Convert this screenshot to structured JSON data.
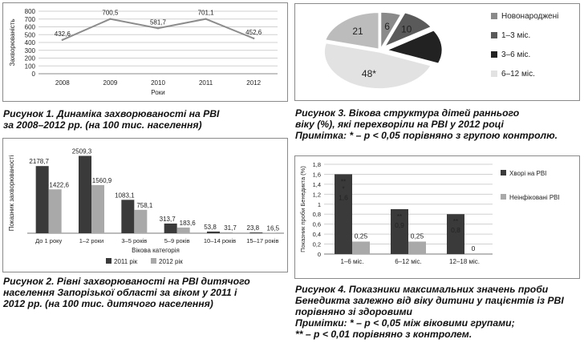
{
  "figures": {
    "fig1": {
      "caption_line1": "Рисунок 1. Динаміка захворюваності на РВІ",
      "caption_line2": "за 2008–2012 рр. (на 100 тис. населення)"
    },
    "fig2": {
      "caption_line1": "Рисунок 2. Рівні захворюваності на РВІ дитячого",
      "caption_line2": "населення Запорізької області за віком у 2011 і",
      "caption_line3": "2012 рр. (на 100 тис. дитячого населення)"
    },
    "fig3": {
      "caption_line1": "Рисунок 3. Вікова структура дітей раннього",
      "caption_line2": "віку (%), які перехворіли на РВІ у 2012 році",
      "caption_line3": "Примітка: * – p < 0,05 порівняно з групою контролю."
    },
    "fig4": {
      "caption_line1": "Рисунок 4. Показники максимальних значень проби",
      "caption_line2": "Бенедикта залежно від віку дитини у пацієнтів із РВІ",
      "caption_line3": "порівняно зі здоровими",
      "caption_line4": "Примітки: * – p < 0,05 між віковими групами;",
      "caption_line5": "** – p < 0,01 порівняно з контролем."
    }
  },
  "chart_data": [
    {
      "id": "fig1",
      "type": "line",
      "title": "",
      "xlabel": "Роки",
      "ylabel": "Захворюваність",
      "x": [
        "2008",
        "2009",
        "2010",
        "2011",
        "2012"
      ],
      "values": [
        432.6,
        700.5,
        581.7,
        701.1,
        452.6
      ],
      "value_labels": [
        "432,6",
        "700,5",
        "581,7",
        "701,1",
        "452,6"
      ],
      "ylim": [
        0,
        800
      ],
      "yticks": [
        0,
        100,
        200,
        300,
        400,
        500,
        600,
        700,
        800
      ],
      "grid": true,
      "series_color": "#8c8c8c"
    },
    {
      "id": "fig2",
      "type": "bar",
      "title": "",
      "xlabel": "Вікова категорія",
      "ylabel": "Показник захворюваності",
      "categories": [
        "До 1 року",
        "1–2 роки",
        "3–5 років",
        "5–9 років",
        "10–14 років",
        "15–17 років"
      ],
      "series": [
        {
          "name": "2011 рік",
          "color": "#3a3a3a",
          "values": [
            2178.7,
            2509.3,
            1083.1,
            313.7,
            53.8,
            23.8
          ],
          "labels": [
            "2178,7",
            "2509,3",
            "1083,1",
            "313,7",
            "53,8",
            "23,8"
          ]
        },
        {
          "name": "2012 рік",
          "color": "#a9a9a9",
          "values": [
            1422.6,
            1560.9,
            758.1,
            183.6,
            31.7,
            16.5
          ],
          "labels": [
            "1422,6",
            "1560,9",
            "758,1",
            "183,6",
            "31,7",
            "16,5"
          ]
        }
      ],
      "ylim": [
        0,
        2600
      ],
      "legend": "bottom",
      "grid": false
    },
    {
      "id": "fig3",
      "type": "pie",
      "title": "",
      "slices": [
        {
          "name": "Новонароджені",
          "value": 6,
          "label": "6",
          "color": "#8a8a8a"
        },
        {
          "name": "1–3 міс.",
          "value": 10,
          "label": "10",
          "color": "#5a5a5a"
        },
        {
          "name": "3–6 міс.",
          "value": 15,
          "label": "15",
          "color": "#222222"
        },
        {
          "name": "6–12 міс.",
          "value": 48,
          "label": "48*",
          "color": "#e2e2e2"
        },
        {
          "name": "",
          "value": 21,
          "label": "21",
          "color": "#bcbcbc"
        }
      ],
      "legend": "right"
    },
    {
      "id": "fig4",
      "type": "bar",
      "title": "",
      "xlabel": "",
      "ylabel": "Показник проби Бенедикта (%)",
      "categories": [
        "1–6 міс.",
        "6–12 міс.",
        "12–18 міс."
      ],
      "series": [
        {
          "name": "Хворі на РВІ",
          "color": "#3a3a3a",
          "values": [
            1.6,
            0.9,
            0.8
          ],
          "labels": [
            "1,6",
            "0,9",
            "0,8"
          ],
          "annotations": [
            "**\n*",
            "**",
            "**"
          ]
        },
        {
          "name": "Неінфіковані РВІ",
          "color": "#a9a9a9",
          "values": [
            0.25,
            0.25,
            0
          ],
          "labels": [
            "0,25",
            "0,25",
            "0"
          ]
        }
      ],
      "ylim": [
        0,
        1.8
      ],
      "yticks": [
        0,
        0.2,
        0.4,
        0.6,
        0.8,
        1,
        1.2,
        1.4,
        1.6,
        1.8
      ],
      "ytick_labels": [
        "0",
        "0,2",
        "0,4",
        "0,6",
        "0,8",
        "1",
        "1,2",
        "1,4",
        "1,6",
        "1,8"
      ],
      "legend": "right",
      "grid": true
    }
  ]
}
